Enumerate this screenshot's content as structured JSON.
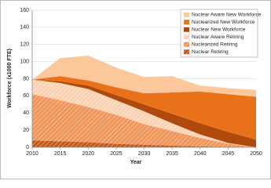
{
  "chart_data": {
    "type": "stacked_area",
    "x_label": "Year",
    "y_label": "Workforce (x1000 FTE)",
    "x": [
      2010,
      2015,
      2020,
      2025,
      2030,
      2035,
      2040,
      2045,
      2050
    ],
    "series": [
      {
        "name": "Nuclear Retiring",
        "color": "#c0581a",
        "hatch": true,
        "values": [
          8,
          7,
          6,
          4,
          3,
          2,
          1,
          0.5,
          0
        ]
      },
      {
        "name": "Nuclearized Retiring",
        "color": "#f0955a",
        "hatch": true,
        "values": [
          54,
          48,
          41,
          34,
          24,
          17,
          10,
          3.5,
          0
        ]
      },
      {
        "name": "Nuclear Aware Retiring",
        "color": "#fbd3b2",
        "hatch": true,
        "values": [
          17,
          20,
          21,
          17,
          15,
          9,
          4,
          1,
          0
        ]
      },
      {
        "name": "Nuclear New Workforce",
        "color": "#b04a0c",
        "hatch": false,
        "values": [
          0,
          2,
          4,
          6,
          8,
          11,
          13,
          13,
          9
        ]
      },
      {
        "name": "Nuclearized New Workforce",
        "color": "#e8711a",
        "hatch": false,
        "values": [
          0,
          6,
          6,
          9,
          13,
          25,
          37,
          44,
          50
        ]
      },
      {
        "name": "Nuclear Aware New Workforce",
        "color": "#fcc79a",
        "hatch": false,
        "values": [
          0,
          21,
          29,
          23,
          19,
          19,
          7,
          7,
          8
        ]
      }
    ],
    "xlim": [
      2010,
      2050
    ],
    "xticks": [
      2010,
      2015,
      2020,
      2025,
      2030,
      2035,
      2040,
      2045,
      2050
    ],
    "ylim": [
      0,
      160
    ],
    "yticks": [
      0,
      20,
      40,
      60,
      80,
      100,
      120,
      140,
      160
    ],
    "grid": true,
    "legend": "top-right"
  }
}
